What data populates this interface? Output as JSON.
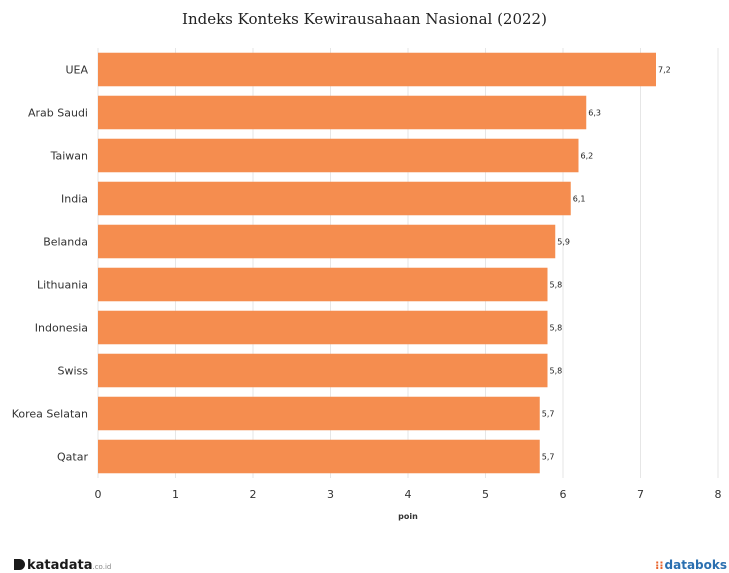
{
  "branding": {
    "left": "katadata",
    "left_suffix": ".co.id",
    "right": "databoks"
  },
  "colors": {
    "bar": "#f58d4f",
    "grid": "#e6e6e6"
  },
  "chart_data": {
    "type": "bar",
    "orientation": "horizontal",
    "title": "Indeks Konteks Kewirausahaan Nasional (2022)",
    "xlabel": "poin",
    "ylabel": "",
    "categories": [
      "UEA",
      "Arab Saudi",
      "Taiwan",
      "India",
      "Belanda",
      "Lithuania",
      "Indonesia",
      "Swiss",
      "Korea Selatan",
      "Qatar"
    ],
    "values": [
      7.2,
      6.3,
      6.2,
      6.1,
      5.9,
      5.8,
      5.8,
      5.8,
      5.7,
      5.7
    ],
    "value_labels": [
      "7,2",
      "6,3",
      "6,2",
      "6,1",
      "5,9",
      "5,8",
      "5,8",
      "5,8",
      "5,7",
      "5,7"
    ],
    "xlim": [
      0,
      8
    ],
    "ticks": [
      0,
      1,
      2,
      3,
      4,
      5,
      6,
      7,
      8
    ],
    "tick_labels": [
      "0",
      "1",
      "2",
      "3",
      "4",
      "5",
      "6",
      "7",
      "8"
    ],
    "grid": true,
    "legend": "none"
  }
}
